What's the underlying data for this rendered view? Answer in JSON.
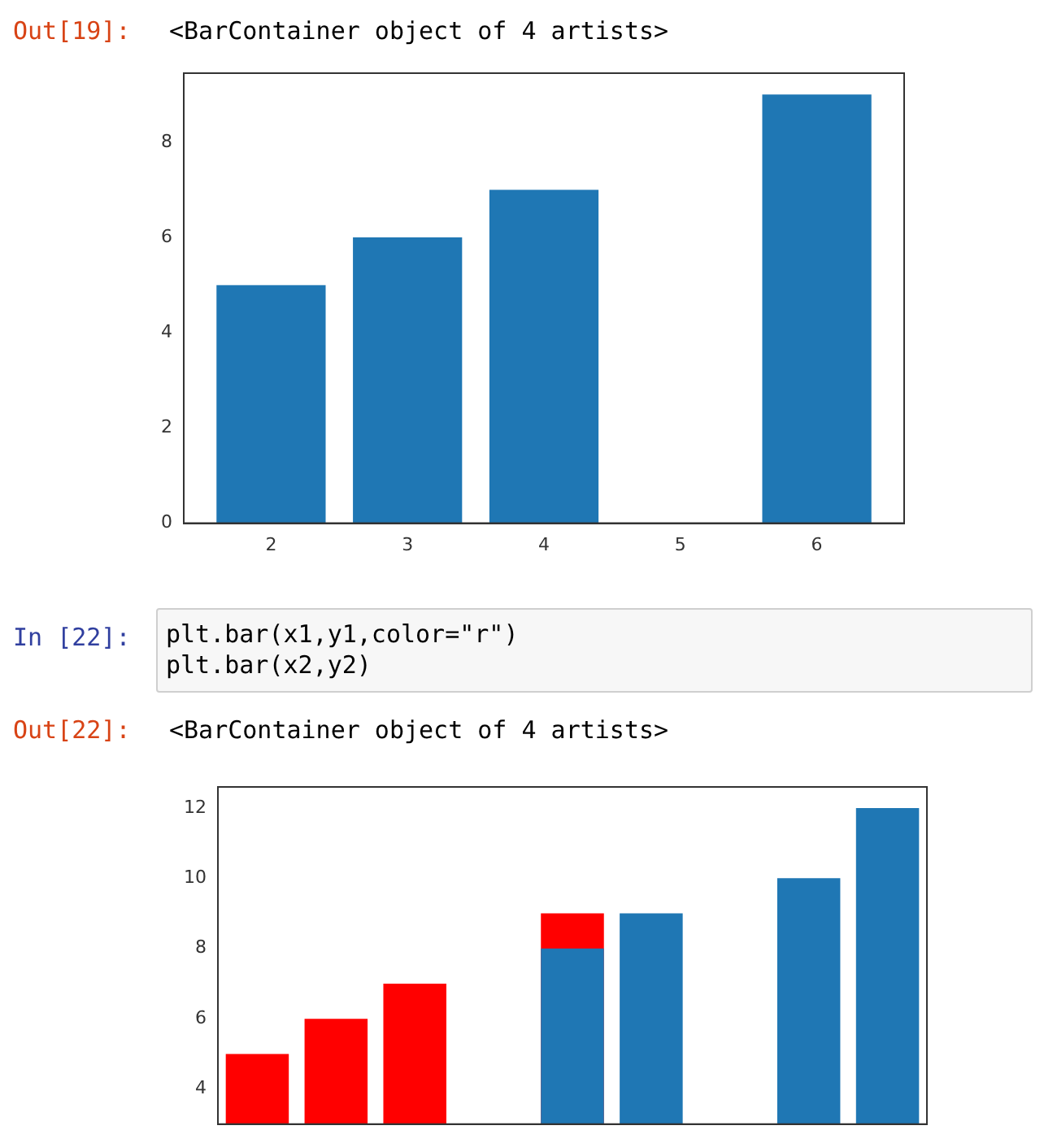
{
  "chart_data": [
    {
      "type": "bar",
      "annotations": [
        "Out[19]:",
        "<BarContainer object of 4 artists>"
      ],
      "x": [
        2,
        3,
        4,
        6
      ],
      "values": [
        5,
        6,
        7,
        9
      ],
      "color": "#1f77b4",
      "xlim": [
        1.36,
        6.64
      ],
      "xticks": [
        2,
        3,
        4,
        5,
        6
      ],
      "ylim": [
        0,
        9.45
      ],
      "yticks": [
        0,
        2,
        4,
        6,
        8
      ],
      "grid": false,
      "legend": false
    },
    {
      "type": "bar",
      "annotations": [
        "In [22]:",
        "plt.bar(x1,y1,color=\"r\")\nplt.bar(x2,y2)",
        "Out[22]:",
        "<BarContainer object of 4 artists>"
      ],
      "categories": [
        null,
        null,
        null,
        null,
        null,
        null,
        null,
        null,
        null
      ],
      "series": [
        {
          "color": "#ff0000",
          "values": [
            5,
            6,
            7,
            null,
            9,
            null,
            null,
            null,
            null
          ]
        },
        {
          "color": "#1f77b4",
          "values": [
            null,
            null,
            null,
            null,
            8,
            9,
            null,
            10,
            12
          ]
        }
      ],
      "ylim": [
        3,
        12.6
      ],
      "yticks": [
        4,
        6,
        8,
        10,
        12
      ],
      "tick_labels": "y",
      "grid": false,
      "legend": false
    }
  ]
}
